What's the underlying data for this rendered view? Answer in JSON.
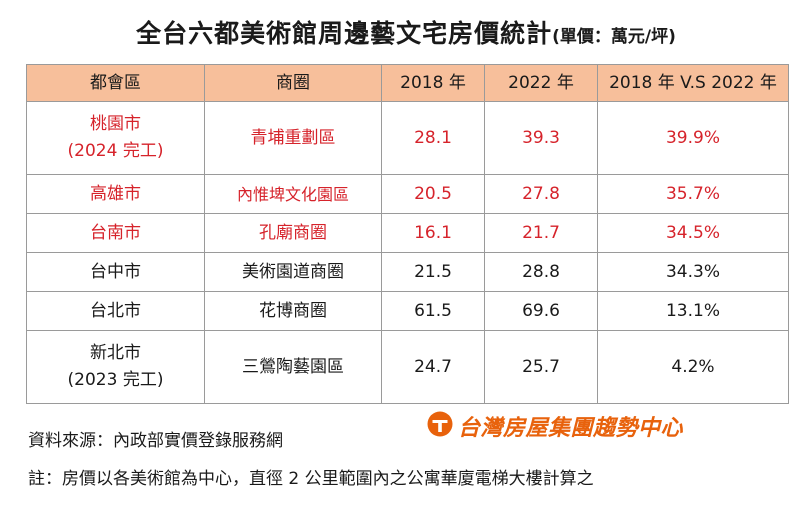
{
  "title": "全台六都美術館周邊藝文宅房價統計",
  "unit": "(單價：萬元/坪)",
  "table": {
    "headers": [
      "都會區",
      "商圈",
      "2018 年",
      "2022 年",
      "2018 年 V.S 2022 年"
    ],
    "rows": [
      {
        "city": "桃園市",
        "city_note": "(2024 完工)",
        "district": "青埔重劃區",
        "y2018": "28.1",
        "y2022": "39.3",
        "change": "39.9%"
      },
      {
        "city": "高雄市",
        "district": "內惟埤文化園區",
        "y2018": "20.5",
        "y2022": "27.8",
        "change": "35.7%"
      },
      {
        "city": "台南市",
        "district": "孔廟商圈",
        "y2018": "16.1",
        "y2022": "21.7",
        "change": "34.5%"
      },
      {
        "city": "台中市",
        "district": "美術園道商圈",
        "y2018": "21.5",
        "y2022": "28.8",
        "change": "34.3%"
      },
      {
        "city": "台北市",
        "district": "花博商圈",
        "y2018": "61.5",
        "y2022": "69.6",
        "change": "13.1%"
      },
      {
        "city": "新北市",
        "city_note": "(2023 完工)",
        "district": "三鶯陶藝園區",
        "y2018": "24.7",
        "y2022": "25.7",
        "change": "4.2%"
      }
    ]
  },
  "source": "資料來源：內政部實價登錄服務網",
  "brand": {
    "name": "台灣房屋集團趨勢中心",
    "icon": "taiwan-realty-logo-icon",
    "color": "#e8620c"
  },
  "note": "註：房價以各美術館為中心，直徑 2 公里範圍內之公寓華廈電梯大樓計算之",
  "colors": {
    "header_bg": "#f7bf9b",
    "highlight_text": "#d6232b"
  }
}
